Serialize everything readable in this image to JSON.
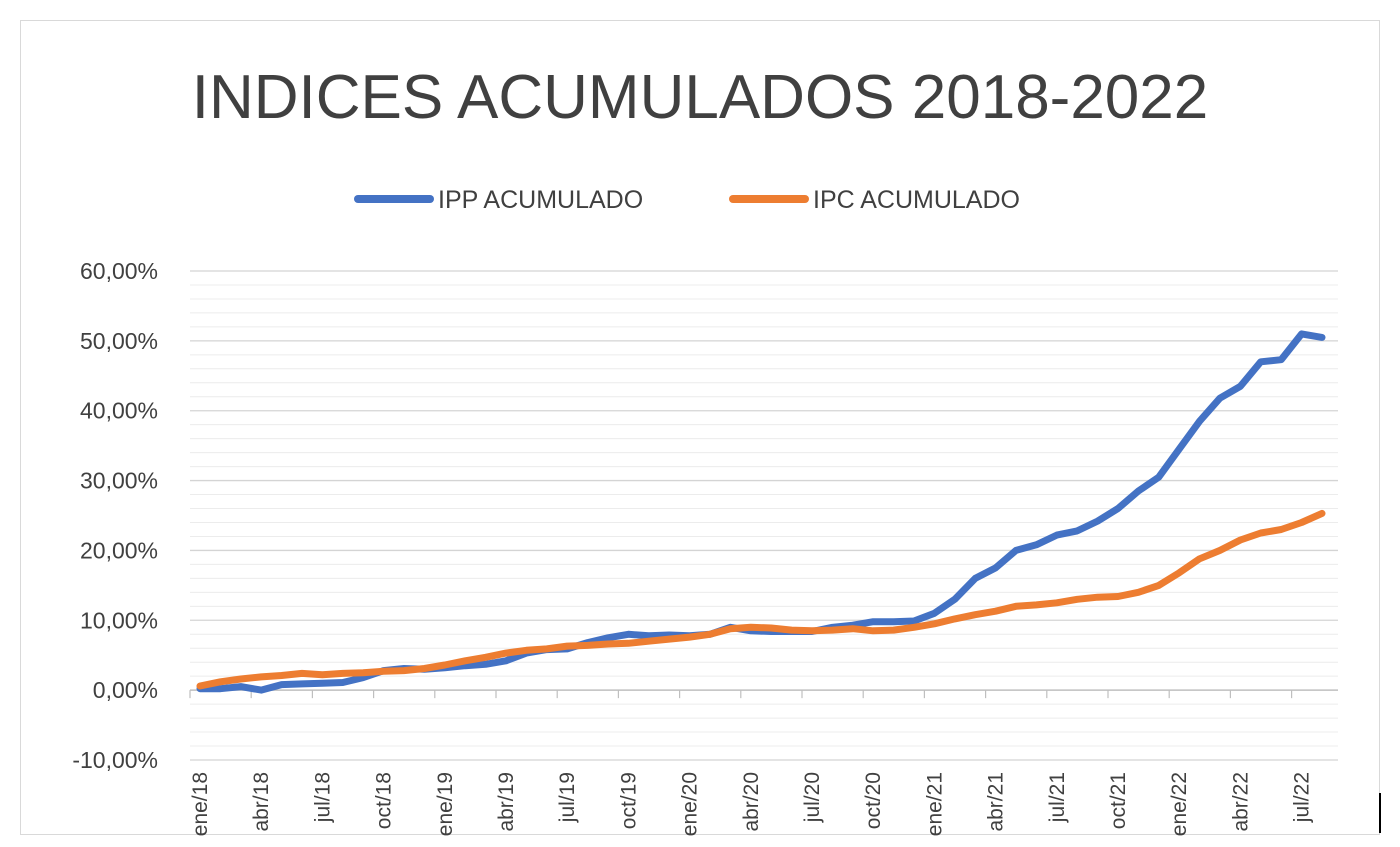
{
  "chart_data": {
    "type": "line",
    "title": "INDICES ACUMULADOS 2018-2022",
    "xlabel": "",
    "ylabel": "",
    "x": [
      "ene/18",
      "feb/18",
      "mar/18",
      "abr/18",
      "may/18",
      "jun/18",
      "jul/18",
      "ago/18",
      "sep/18",
      "oct/18",
      "nov/18",
      "dic/18",
      "ene/19",
      "feb/19",
      "mar/19",
      "abr/19",
      "may/19",
      "jun/19",
      "jul/19",
      "ago/19",
      "sep/19",
      "oct/19",
      "nov/19",
      "dic/19",
      "ene/20",
      "feb/20",
      "mar/20",
      "abr/20",
      "may/20",
      "jun/20",
      "jul/20",
      "ago/20",
      "sep/20",
      "oct/20",
      "nov/20",
      "dic/20",
      "ene/21",
      "feb/21",
      "mar/21",
      "abr/21",
      "may/21",
      "jun/21",
      "jul/21",
      "ago/21",
      "sep/21",
      "oct/21",
      "nov/21",
      "dic/21",
      "ene/22",
      "feb/22",
      "mar/22",
      "abr/22",
      "may/22",
      "jun/22",
      "jul/22",
      "ago/22"
    ],
    "tick_labels": [
      "ene/18",
      "abr/18",
      "jul/18",
      "oct/18",
      "ene/19",
      "abr/19",
      "jul/19",
      "oct/19",
      "ene/20",
      "abr/20",
      "jul/20",
      "oct/20",
      "ene/21",
      "abr/21",
      "jul/21",
      "oct/21",
      "ene/22",
      "abr/22",
      "jul/22"
    ],
    "series": [
      {
        "name": "IPP ACUMULADO",
        "color": "#4472c4",
        "values": [
          0.2,
          0.2,
          0.5,
          0.0,
          0.8,
          0.9,
          1.0,
          1.1,
          1.8,
          2.8,
          3.1,
          3.0,
          3.2,
          3.5,
          3.7,
          4.2,
          5.3,
          5.8,
          5.9,
          6.8,
          7.5,
          8.0,
          7.8,
          7.9,
          7.8,
          8.0,
          9.0,
          8.5,
          8.4,
          8.4,
          8.4,
          9.0,
          9.3,
          9.8,
          9.8,
          9.9,
          11.0,
          13.0,
          16.0,
          17.5,
          20.0,
          20.8,
          22.2,
          22.8,
          24.2,
          26.0,
          28.5,
          30.5,
          34.5,
          38.5,
          41.8,
          43.5,
          47.0,
          47.3,
          51.0,
          50.5
        ]
      },
      {
        "name": "IPC ACUMULADO",
        "color": "#ed7d31",
        "values": [
          0.6,
          1.2,
          1.6,
          1.9,
          2.1,
          2.4,
          2.2,
          2.4,
          2.5,
          2.7,
          2.8,
          3.1,
          3.6,
          4.2,
          4.7,
          5.3,
          5.7,
          5.9,
          6.3,
          6.4,
          6.6,
          6.7,
          7.0,
          7.3,
          7.6,
          8.0,
          8.8,
          9.0,
          8.9,
          8.6,
          8.5,
          8.6,
          8.8,
          8.5,
          8.6,
          9.0,
          9.5,
          10.2,
          10.8,
          11.3,
          12.0,
          12.2,
          12.5,
          13.0,
          13.3,
          13.4,
          14.0,
          15.0,
          16.8,
          18.8,
          20.0,
          21.5,
          22.5,
          23.0,
          24.0,
          25.3
        ]
      }
    ],
    "ylim": [
      -10,
      60
    ],
    "y_ticks": [
      60,
      50,
      40,
      30,
      20,
      10,
      0,
      -10
    ],
    "y_tick_labels": [
      "60,00%",
      "50,00%",
      "40,00%",
      "30,00%",
      "20,00%",
      "10,00%",
      "0,00%",
      "-10,00%"
    ],
    "grid": true,
    "legend_position": "top-center"
  }
}
